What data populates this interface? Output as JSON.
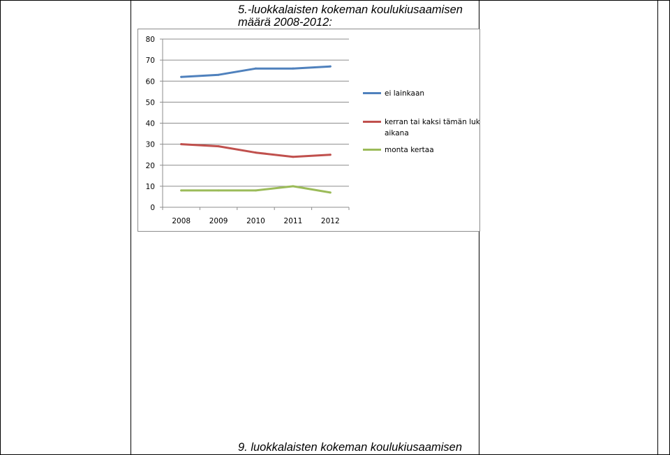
{
  "document": {
    "heading_top_line1": "5.-luokkalaisten kokeman koulukiusaamisen",
    "heading_top_line2": "määrä 2008-2012:",
    "heading_bottom": "9. luokkalaisten kokeman koulukiusaamisen"
  },
  "chart_data": {
    "type": "line",
    "title": "",
    "xlabel": "",
    "ylabel": "",
    "categories": [
      "2008",
      "2009",
      "2010",
      "2011",
      "2012"
    ],
    "ylim": [
      0,
      80
    ],
    "yticks": [
      0,
      10,
      20,
      30,
      40,
      50,
      60,
      70,
      80
    ],
    "grid": true,
    "legend_position": "right",
    "series": [
      {
        "name": "ei lainkaan",
        "color": "#4f81bd",
        "values": [
          62,
          63,
          66,
          66,
          67
        ]
      },
      {
        "name": "kerran tai kaksi tämän lukukauden aikana",
        "color": "#c0504d",
        "values": [
          30,
          29,
          26,
          24,
          25
        ]
      },
      {
        "name": "monta kertaa",
        "color": "#9bbb59",
        "values": [
          8,
          8,
          8,
          10,
          7
        ]
      }
    ]
  }
}
